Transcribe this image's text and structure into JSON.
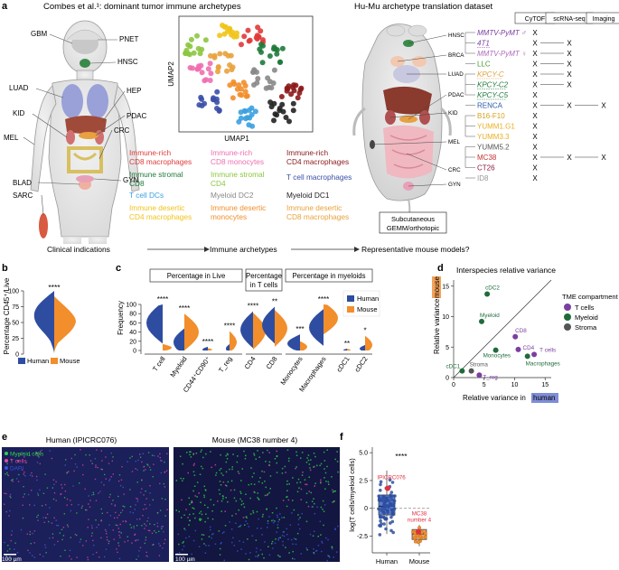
{
  "panel_a": {
    "letter": "a",
    "title_left": "Combes et al.¹: dominant tumor immune archetypes",
    "title_right": "Hu-Mu archetype translation dataset",
    "organs_left": [
      "GBM",
      "PNET",
      "HNSC",
      "LUAD",
      "HEP",
      "KID",
      "PDAC",
      "CRC",
      "MEL",
      "BLAD",
      "GYN",
      "SARC"
    ],
    "umap_x": "UMAP1",
    "umap_y": "UMAP2",
    "archetypes": [
      {
        "text": "Immune-rich\nCD8 macrophages",
        "color": "#e03a3a"
      },
      {
        "text": "Immune-rich\nCD8 monocytes",
        "color": "#ef6fb0"
      },
      {
        "text": "Immune-rich\nCD4 macrophages",
        "color": "#8b1a1a"
      },
      {
        "text": "Immune stromal\nCD8",
        "color": "#1f7a3a"
      },
      {
        "text": "Immune stromal\nCD4",
        "color": "#8cc63f"
      },
      {
        "text": "T cell macrophages",
        "color": "#3b4fa8"
      },
      {
        "text": "T cell DCs",
        "color": "#3aa0e0"
      },
      {
        "text": "Myeloid DC2",
        "color": "#888888"
      },
      {
        "text": "Myeloid DC1",
        "color": "#222222"
      },
      {
        "text": "Immune desertic\nCD4 macrophages",
        "color": "#f0c419"
      },
      {
        "text": "Immune desertic\nmonocytes",
        "color": "#f28e2b"
      },
      {
        "text": "Immune desertic\nCD8 macrophages",
        "color": "#e8a23c"
      }
    ],
    "mouse_sites": [
      "HNSC",
      "BRCA",
      "LUAD",
      "PDAC",
      "KID",
      "MEL",
      "CRC",
      "GYN"
    ],
    "models": [
      {
        "name": "MMTV-PyMT ♂",
        "color": "#7b3fa0",
        "marks": [
          "X",
          "",
          ""
        ]
      },
      {
        "name": "4T1",
        "color": "#7b3fa0",
        "marks": [
          "X",
          "X",
          ""
        ]
      },
      {
        "name": "MMTV-PyMT ♀",
        "color": "#b06ac0",
        "marks": [
          "X",
          "X",
          ""
        ]
      },
      {
        "name": "LLC",
        "color": "#4a9a3a",
        "marks": [
          "X",
          "X",
          ""
        ]
      },
      {
        "name": "KPCY-C",
        "color": "#e0a040",
        "marks": [
          "X",
          "X",
          ""
        ]
      },
      {
        "name": "KPCY-C2",
        "color": "#1f7a3a",
        "marks": [
          "X",
          "X",
          ""
        ]
      },
      {
        "name": "KPCY-C5",
        "color": "#1f7a3a",
        "marks": [
          "X",
          "",
          ""
        ]
      },
      {
        "name": "RENCA",
        "color": "#2a5aa8",
        "marks": [
          "X",
          "X",
          "X"
        ]
      },
      {
        "name": "B16-F10",
        "color": "#d8a020",
        "marks": [
          "X",
          "",
          ""
        ]
      },
      {
        "name": "YUMM1.G1",
        "color": "#e8b020",
        "marks": [
          "X",
          "",
          ""
        ]
      },
      {
        "name": "YUMM3.3",
        "color": "#e8b020",
        "marks": [
          "X",
          "",
          ""
        ]
      },
      {
        "name": "YUMM5.2",
        "color": "#555555",
        "marks": [
          "X",
          "",
          ""
        ]
      },
      {
        "name": "MC38",
        "color": "#c83030",
        "marks": [
          "X",
          "X",
          "X"
        ]
      },
      {
        "name": "CT26",
        "color": "#8b1a40",
        "marks": [
          "X",
          "",
          ""
        ]
      },
      {
        "name": "ID8",
        "color": "#999999",
        "marks": [
          "X",
          "",
          ""
        ]
      }
    ],
    "columns": [
      "CyTOF",
      "scRNA-seq",
      "Imaging"
    ],
    "subcutaneous_box": "Subcutaneous\nGEMM/orthotopic",
    "flow": [
      "Clinical indications",
      "Immune archetypes",
      "Representative mouse models?"
    ]
  },
  "panel_b": {
    "letter": "b",
    "ylabel": "Percentage CD45⁺/Live",
    "yticks": [
      "0",
      "25",
      "50",
      "75",
      "100"
    ],
    "sig": "****",
    "legend": [
      "Human",
      "Mouse"
    ]
  },
  "panel_c": {
    "letter": "c",
    "ylabel": "Frequency",
    "yticks": [
      "0",
      "20",
      "40",
      "60",
      "80",
      "100"
    ],
    "group_titles": [
      "Percentage in Live",
      "Percentage\nin T cells",
      "Percentage in myeloids"
    ],
    "categories": [
      "T cell",
      "Myeloid",
      "CD44⁺CD90⁺\nstroma",
      "T_reg",
      "CD4",
      "CD8",
      "Monocytes",
      "Macrophages",
      "cDC1",
      "cDC2"
    ],
    "sig": [
      "****",
      "****",
      "****",
      "****",
      "****",
      "**",
      "***",
      "****",
      "**",
      "*"
    ],
    "legend": [
      "Human",
      "Mouse"
    ]
  },
  "panel_d": {
    "letter": "d",
    "title": "Interspecies relative variance",
    "ylabel": "Relative variance in",
    "ylabel_hl": "mouse",
    "xlabel": "Relative variance in",
    "xlabel_hl": "human",
    "ticks": [
      "0",
      "5",
      "10",
      "15"
    ],
    "legend_title": "TME compartment",
    "legend": [
      {
        "label": "T cells",
        "color": "#7b3fa0"
      },
      {
        "label": "Myeloid",
        "color": "#1f6b3a"
      },
      {
        "label": "Stroma",
        "color": "#555555"
      }
    ],
    "chart_data": {
      "type": "scatter",
      "xlim": [
        0,
        16
      ],
      "ylim": [
        0,
        16
      ],
      "points": [
        {
          "label": "cDC2",
          "x": 5.5,
          "y": 13.7,
          "group": "Myeloid"
        },
        {
          "label": "Myeloid",
          "x": 4.6,
          "y": 9.2,
          "group": "Myeloid"
        },
        {
          "label": "CD8",
          "x": 10.1,
          "y": 6.7,
          "group": "T cells"
        },
        {
          "label": "CD4",
          "x": 10.6,
          "y": 4.6,
          "group": "T cells"
        },
        {
          "label": "T cells",
          "x": 13.2,
          "y": 3.8,
          "group": "T cells"
        },
        {
          "label": "Monocytes",
          "x": 6.9,
          "y": 4.5,
          "group": "Myeloid"
        },
        {
          "label": "Macrophages",
          "x": 12.1,
          "y": 3.5,
          "group": "Myeloid"
        },
        {
          "label": "cDC1",
          "x": 1.4,
          "y": 1.1,
          "group": "Myeloid"
        },
        {
          "label": "Stroma",
          "x": 2.9,
          "y": 1.1,
          "group": "Stroma"
        },
        {
          "label": "T_reg",
          "x": 4.2,
          "y": 0.4,
          "group": "T cells"
        }
      ]
    }
  },
  "panel_e": {
    "letter": "e",
    "left_title": "Human (IPICRC076)",
    "right_title": "Mouse (MC38 number 4)",
    "legend": [
      {
        "label": "Myeloid cells",
        "color": "#2fd04a"
      },
      {
        "label": "T cells",
        "color": "#e04aa0"
      },
      {
        "label": "DAPI",
        "color": "#3a52d8"
      }
    ],
    "scale": "100 µm"
  },
  "panel_f": {
    "letter": "f",
    "ylabel": "log(T cells/myeloid cells)",
    "yticks": [
      "5.0",
      "2.5",
      "0",
      "-2.5"
    ],
    "sig": "****",
    "xticks": [
      "Human",
      "Mouse"
    ],
    "ann_human": "IPICRC076",
    "ann_mouse": "MC38\nnumber 4",
    "chart_data": {
      "type": "box",
      "ylim": [
        -4,
        5.5
      ],
      "human": {
        "median": 0.2,
        "q1": -0.6,
        "q3": 1.2,
        "whisker_low": -2.3,
        "whisker_high": 3.4
      },
      "mouse": {
        "median": -2.3,
        "q1": -2.8,
        "q3": -1.9,
        "whisker_low": -3.4,
        "whisker_high": -1.5
      },
      "highlight_human": 1.8,
      "highlight_mouse": -2.1
    }
  },
  "colors": {
    "human": "#2e4da0",
    "mouse": "#f28e2b"
  }
}
